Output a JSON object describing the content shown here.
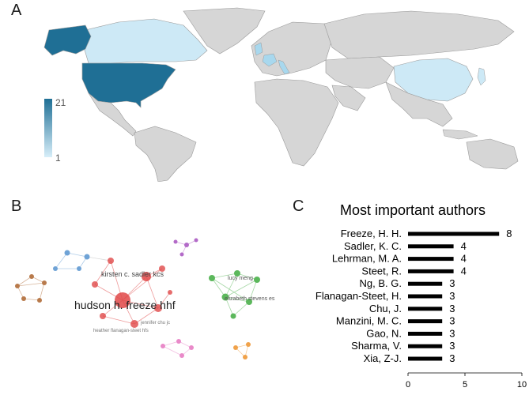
{
  "panels": {
    "a": "A",
    "b": "B",
    "c": "C"
  },
  "map": {
    "legend_max": "21",
    "legend_min": "1",
    "colors": {
      "land": "#d6d6d6",
      "high": "#1f6f95",
      "low": "#cde9f6",
      "mid": "#a8d8ee",
      "border": "#9a9a9a"
    }
  },
  "network": {
    "labels": [
      "kirsten c. sadler kcs",
      "hudson h. freeze hhf",
      "lucy meng",
      "elizabeth stevens es",
      "heather flanagan-steet hfs",
      "jennifer chu jc"
    ],
    "colors": {
      "red": "#e04848",
      "green": "#5cb85c",
      "blue": "#6fa3d6",
      "brown": "#b87a4b",
      "purple": "#b36ac8",
      "pink": "#e98ac9",
      "orange": "#f0a24a"
    }
  },
  "chart_data": {
    "type": "bar",
    "orientation": "horizontal",
    "title": "Most important authors",
    "categories": [
      "Freeze, H. H.",
      "Sadler, K. C.",
      "Lehrman, M. A.",
      "Steet, R.",
      "Ng, B. G.",
      "Flanagan-Steet, H.",
      "Chu, J.",
      "Manzini, M. C.",
      "Gao, N.",
      "Sharma, V.",
      "Xia, Z-J."
    ],
    "values": [
      8,
      4,
      4,
      4,
      3,
      3,
      3,
      3,
      3,
      3,
      3
    ],
    "xlim": [
      0,
      10
    ],
    "xticks": [
      "0",
      "5",
      "10"
    ],
    "bar_color": "#000000"
  }
}
